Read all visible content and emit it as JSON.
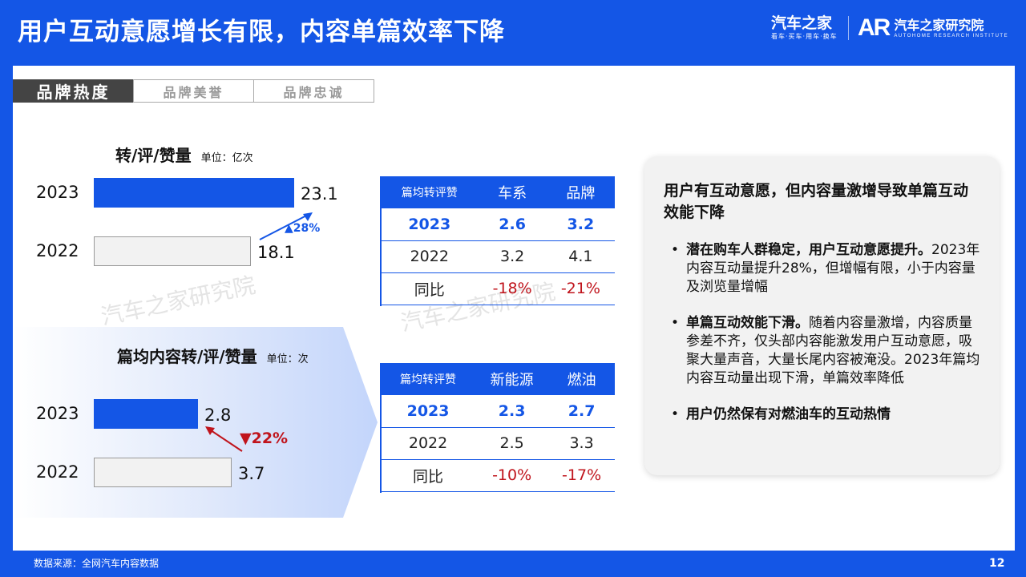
{
  "header": {
    "title": "用户互动意愿增长有限，内容单篇效率下降",
    "logo_autohome": "汽车之家",
    "logo_autohome_sub": "看车·买车·用车·换车",
    "logo_mark": "AR",
    "logo_institute": "汽车之家研究院",
    "logo_institute_sub": "AUTOHOME RESEARCH INSTITUTE"
  },
  "tabs": [
    {
      "label": "品牌热度",
      "active": true
    },
    {
      "label": "品牌美誉",
      "active": false
    },
    {
      "label": "品牌忠诚",
      "active": false
    }
  ],
  "watermark": "汽车之家研究院",
  "chart_data": [
    {
      "type": "bar",
      "orientation": "horizontal",
      "title": "转/评/赞量",
      "unit": "单位：亿次",
      "categories": [
        "2023",
        "2022"
      ],
      "values": [
        23.1,
        18.1
      ],
      "value_labels": [
        "23.1",
        "18.1"
      ],
      "change_label": "▲28%",
      "colors": {
        "current": "#1456e6",
        "previous": "#f2f2f2"
      }
    },
    {
      "type": "bar",
      "orientation": "horizontal",
      "title": "篇均内容转/评/赞量",
      "unit": "单位：次",
      "categories": [
        "2023",
        "2022"
      ],
      "values": [
        2.8,
        3.7
      ],
      "value_labels": [
        "2.8",
        "3.7"
      ],
      "change_label": "▼22%",
      "colors": {
        "current": "#1456e6",
        "previous": "#f2f2f2",
        "down": "#c0141c"
      }
    }
  ],
  "table1": {
    "headers": [
      "篇均转评赞",
      "车系",
      "品牌"
    ],
    "rows": [
      [
        "2023",
        "2.6",
        "3.2"
      ],
      [
        "2022",
        "3.2",
        "4.1"
      ],
      [
        "同比",
        "-18%",
        "-21%"
      ]
    ]
  },
  "table2": {
    "headers": [
      "篇均转评赞",
      "新能源",
      "燃油"
    ],
    "rows": [
      [
        "2023",
        "2.3",
        "2.7"
      ],
      [
        "2022",
        "2.5",
        "3.3"
      ],
      [
        "同比",
        "-10%",
        "-17%"
      ]
    ]
  },
  "info": {
    "heading": "用户有互动意愿，但内容量激增导致单篇互动效能下降",
    "bullet": "•",
    "points": [
      {
        "bold": "潜在购车人群稳定，用户互动意愿提升。",
        "text": "2023年内容互动量提升28%，但增幅有限，小于内容量及浏览量增幅"
      },
      {
        "bold": "单篇互动效能下滑。",
        "text": "随着内容量激增，内容质量参差不齐，仅头部内容能激发用户互动意愿，吸聚大量声音，大量长尾内容被淹没。2023年篇均内容互动量出现下滑，单篇效率降低"
      },
      {
        "bold": "用户仍然保有对燃油车的互动热情",
        "text": ""
      }
    ]
  },
  "footer": {
    "source": "数据来源：全网汽车内容数据",
    "page": "12"
  }
}
